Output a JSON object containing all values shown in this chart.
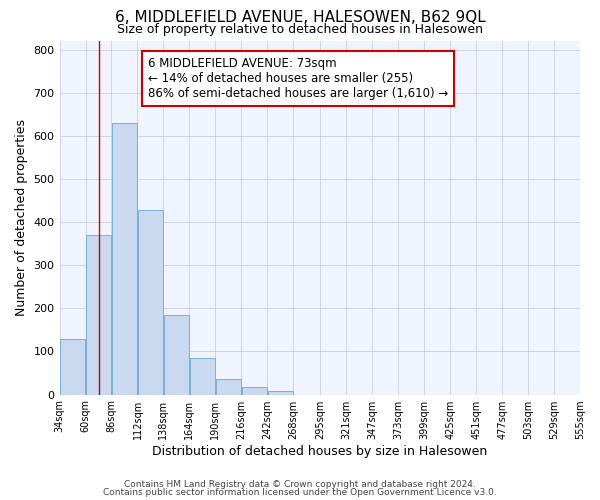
{
  "title": "6, MIDDLEFIELD AVENUE, HALESOWEN, B62 9QL",
  "subtitle": "Size of property relative to detached houses in Halesowen",
  "xlabel": "Distribution of detached houses by size in Halesowen",
  "ylabel": "Number of detached properties",
  "bin_edges": [
    34,
    60,
    86,
    112,
    138,
    164,
    190,
    216,
    242,
    268,
    295,
    321,
    347,
    373,
    399,
    425,
    451,
    477,
    503,
    529,
    555
  ],
  "bin_counts": [
    130,
    370,
    630,
    428,
    185,
    85,
    35,
    18,
    8,
    0,
    0,
    0,
    0,
    0,
    0,
    0,
    0,
    0,
    0,
    0
  ],
  "bar_color": "#c8d9f0",
  "bar_edge_color": "#7aaed6",
  "property_size": 73,
  "property_line_color": "#cc0000",
  "annotation_text": "6 MIDDLEFIELD AVENUE: 73sqm\n← 14% of detached houses are smaller (255)\n86% of semi-detached houses are larger (1,610) →",
  "annotation_box_color": "#ffffff",
  "annotation_box_edge": "#cc0000",
  "ylim": [
    0,
    820
  ],
  "footer1": "Contains HM Land Registry data © Crown copyright and database right 2024.",
  "footer2": "Contains public sector information licensed under the Open Government Licence v3.0.",
  "tick_labels": [
    "34sqm",
    "60sqm",
    "86sqm",
    "112sqm",
    "138sqm",
    "164sqm",
    "190sqm",
    "216sqm",
    "242sqm",
    "268sqm",
    "295sqm",
    "321sqm",
    "347sqm",
    "373sqm",
    "399sqm",
    "425sqm",
    "451sqm",
    "477sqm",
    "503sqm",
    "529sqm",
    "555sqm"
  ],
  "background_color": "#ffffff",
  "plot_bg_color": "#f0f4ff"
}
